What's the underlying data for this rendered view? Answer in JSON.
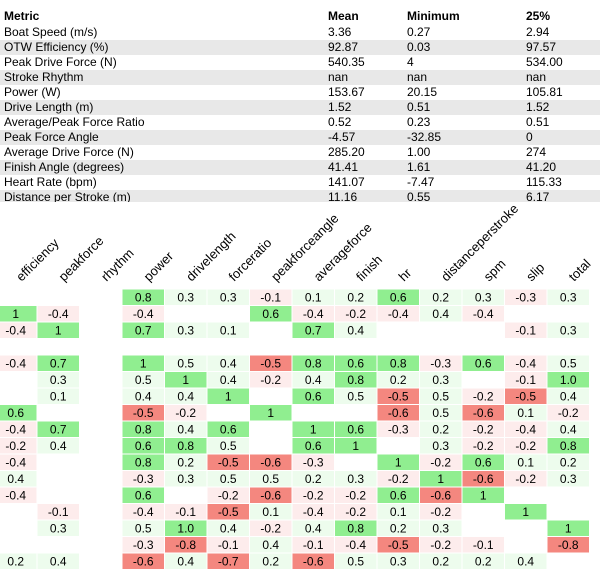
{
  "summary_table": {
    "header": [
      "Metric",
      "Mean",
      "Minimum",
      "25%"
    ],
    "rows": [
      [
        "Boat Speed (m/s)",
        "3.36",
        "0.27",
        "2.94"
      ],
      [
        "OTW Efficiency (%)",
        "92.87",
        "0.03",
        "97.57"
      ],
      [
        "Peak Drive Force (N)",
        "540.35",
        "4",
        "534.00"
      ],
      [
        "Stroke Rhythm",
        "nan",
        "nan",
        "nan"
      ],
      [
        "Power (W)",
        "153.67",
        "20.15",
        "105.81"
      ],
      [
        "Drive Length (m)",
        "1.52",
        "0.51",
        "1.52"
      ],
      [
        "Average/Peak Force Ratio",
        "0.52",
        "0.23",
        "0.51"
      ],
      [
        "Peak Force Angle",
        "-4.57",
        "-32.85",
        "0"
      ],
      [
        "Average Drive Force (N)",
        "285.20",
        "1.00",
        "274"
      ],
      [
        "Finish Angle (degrees)",
        "41.41",
        "1.61",
        "41.20"
      ],
      [
        "Heart Rate (bpm)",
        "141.07",
        "-7.47",
        "115.33"
      ],
      [
        "Distance per Stroke (m)",
        "11.16",
        "0.55",
        "6.17"
      ]
    ]
  },
  "correlation": {
    "colors": {
      "strong_positive": "#90ee90",
      "weak_positive": "#edfced",
      "strong_negative": "#f4877f",
      "weak_negative": "#fdecec"
    },
    "columns": [
      "efficiency",
      "peakforce",
      "rhythm",
      "power",
      "drivelength",
      "forceratio",
      "peakforceangle",
      "averageforce",
      "finish",
      "hr",
      "distanceperstroke",
      "spm",
      "slip",
      "total"
    ],
    "rows": [
      [
        null,
        null,
        null,
        "0.8",
        "0.3",
        "0.3",
        "-0.1",
        "0.1",
        "0.2",
        "0.6",
        "0.2",
        "0.3",
        "-0.3",
        "0.3"
      ],
      [
        "1",
        "-0.4",
        null,
        "-0.4",
        null,
        null,
        "0.6",
        "-0.4",
        "-0.2",
        "-0.4",
        "0.4",
        "-0.4",
        null,
        null
      ],
      [
        "-0.4",
        "1",
        null,
        "0.7",
        "0.3",
        "0.1",
        null,
        "0.7",
        "0.4",
        null,
        null,
        null,
        "-0.1",
        "0.3"
      ],
      [
        null,
        null,
        null,
        null,
        null,
        null,
        null,
        null,
        null,
        null,
        null,
        null,
        null,
        null
      ],
      [
        "-0.4",
        "0.7",
        null,
        "1",
        "0.5",
        "0.4",
        "-0.5",
        "0.8",
        "0.6",
        "0.8",
        "-0.3",
        "0.6",
        "-0.4",
        "0.5"
      ],
      [
        null,
        "0.3",
        null,
        "0.5",
        "1",
        "0.4",
        "-0.2",
        "0.4",
        "0.8",
        "0.2",
        "0.3",
        null,
        "-0.1",
        "1.0"
      ],
      [
        null,
        "0.1",
        null,
        "0.4",
        "0.4",
        "1",
        null,
        "0.6",
        "0.5",
        "-0.5",
        "0.5",
        "-0.2",
        "-0.5",
        "0.4"
      ],
      [
        "0.6",
        null,
        null,
        "-0.5",
        "-0.2",
        null,
        "1",
        null,
        null,
        "-0.6",
        "0.5",
        "-0.6",
        "0.1",
        "-0.2"
      ],
      [
        "-0.4",
        "0.7",
        null,
        "0.8",
        "0.4",
        "0.6",
        null,
        "1",
        "0.6",
        "-0.3",
        "0.2",
        "-0.2",
        "-0.4",
        "0.4"
      ],
      [
        "-0.2",
        "0.4",
        null,
        "0.6",
        "0.8",
        "0.5",
        null,
        "0.6",
        "1",
        null,
        "0.3",
        "-0.2",
        "-0.2",
        "0.8"
      ],
      [
        "-0.4",
        null,
        null,
        "0.8",
        "0.2",
        "-0.5",
        "-0.6",
        "-0.3",
        null,
        "1",
        "-0.2",
        "0.6",
        "0.1",
        "0.2"
      ],
      [
        "0.4",
        null,
        null,
        "-0.3",
        "0.3",
        "0.5",
        "0.5",
        "0.2",
        "0.3",
        "-0.2",
        "1",
        "-0.6",
        "-0.2",
        "0.3"
      ],
      [
        "-0.4",
        null,
        null,
        "0.6",
        null,
        "-0.2",
        "-0.6",
        "-0.2",
        "-0.2",
        "0.6",
        "-0.6",
        "1",
        null,
        null
      ],
      [
        null,
        "-0.1",
        null,
        "-0.4",
        "-0.1",
        "-0.5",
        "0.1",
        "-0.4",
        "-0.2",
        "0.1",
        "-0.2",
        null,
        "1",
        null
      ],
      [
        null,
        "0.3",
        null,
        "0.5",
        "1.0",
        "0.4",
        "-0.2",
        "0.4",
        "0.8",
        "0.2",
        "0.3",
        null,
        null,
        "1"
      ],
      [
        null,
        null,
        null,
        "-0.3",
        "-0.8",
        "-0.1",
        "0.4",
        "-0.1",
        "-0.4",
        "-0.5",
        "-0.2",
        "-0.1",
        null,
        "-0.8"
      ],
      [
        "0.2",
        "0.4",
        null,
        "-0.6",
        "0.4",
        "-0.7",
        "0.2",
        "-0.6",
        "0.5",
        "0.3",
        "0.2",
        "0.2",
        "0.4",
        null
      ]
    ]
  }
}
